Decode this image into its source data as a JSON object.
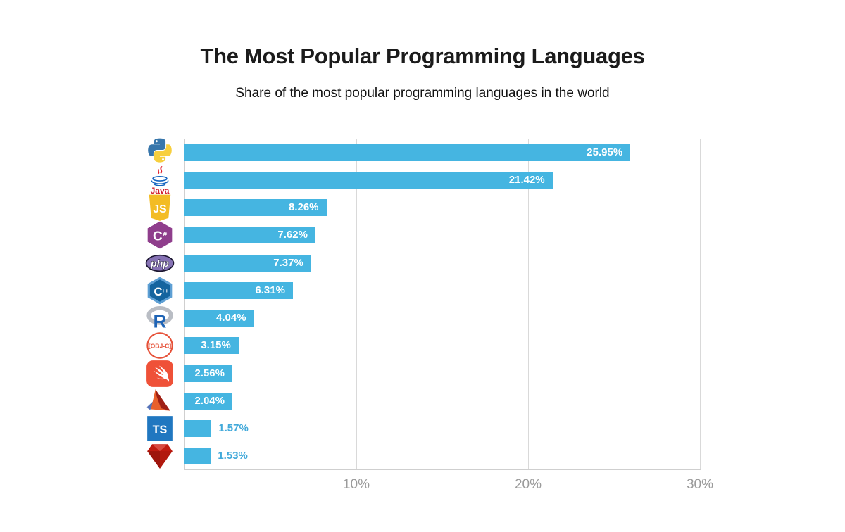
{
  "header": {
    "title": "The Most Popular Programming Languages",
    "subtitle": "Share of the most popular programming languages in the world"
  },
  "chart_data": {
    "type": "bar",
    "orientation": "horizontal",
    "title": "The Most Popular Programming Languages",
    "subtitle": "Share of the most popular programming languages in the world",
    "xlabel": "",
    "ylabel": "",
    "xlim": [
      0,
      30
    ],
    "grid": true,
    "categories": [
      "Python",
      "Java",
      "JavaScript",
      "C#",
      "PHP",
      "C++",
      "R",
      "Objective-C",
      "Swift",
      "MATLAB",
      "TypeScript",
      "Ruby"
    ],
    "values": [
      25.95,
      21.42,
      8.26,
      7.62,
      7.37,
      6.31,
      4.04,
      3.15,
      2.56,
      2.04,
      1.57,
      1.53
    ],
    "value_labels": [
      "25.95%",
      "21.42%",
      "8.26%",
      "7.62%",
      "7.37%",
      "6.31%",
      "4.04%",
      "3.15%",
      "2.56%",
      "2.04%",
      "1.57%",
      "1.53%"
    ],
    "label_inside": [
      true,
      true,
      true,
      true,
      true,
      true,
      true,
      true,
      true,
      true,
      false,
      false
    ],
    "icons": [
      "python-icon",
      "java-icon",
      "javascript-icon",
      "csharp-icon",
      "php-icon",
      "cpp-icon",
      "r-icon",
      "objective-c-icon",
      "swift-icon",
      "matlab-icon",
      "typescript-icon",
      "ruby-icon"
    ],
    "x_ticks": [
      "10%",
      "20%",
      "30%"
    ],
    "colors": {
      "bar": "#45B5E1",
      "label_inside": "#FFFFFF",
      "label_outside": "#41A9DA",
      "gridline": "#D9D9D9",
      "tick_text": "#9B9B9B"
    }
  }
}
